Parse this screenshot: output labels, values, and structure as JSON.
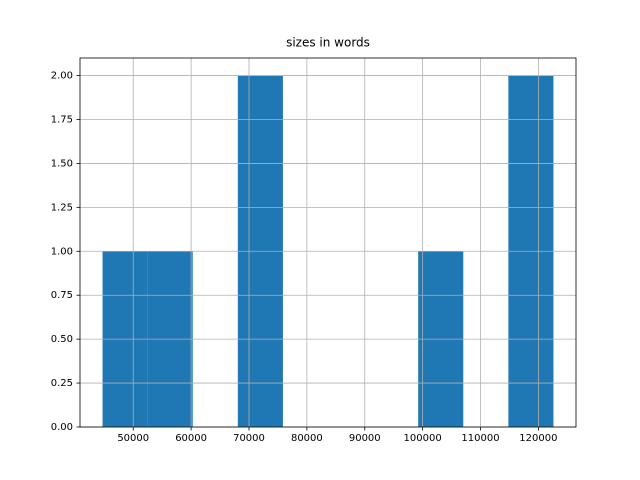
{
  "chart_data": {
    "type": "histogram",
    "title": "sizes in words",
    "bins": [
      44700,
      52490,
      60280,
      68070,
      75860,
      83650,
      91440,
      99230,
      107020,
      114810,
      122600
    ],
    "values": [
      1,
      1,
      0,
      2,
      0,
      0,
      0,
      1,
      0,
      2
    ],
    "color": "#1f77b4",
    "xlim": [
      40805,
      126495
    ],
    "xticks": [
      50000,
      60000,
      70000,
      80000,
      90000,
      100000,
      110000,
      120000
    ],
    "ylim": [
      0,
      2.1
    ],
    "yticks": [
      {
        "value": 0,
        "label": "0.00"
      },
      0.25,
      {
        "value": 0.5,
        "label": "0.50"
      },
      0.75,
      {
        "value": 1,
        "label": "1.00"
      },
      1.25,
      {
        "value": 1.5,
        "label": "1.50"
      },
      1.75,
      {
        "value": 2,
        "label": "2.00"
      }
    ],
    "grid": true
  }
}
